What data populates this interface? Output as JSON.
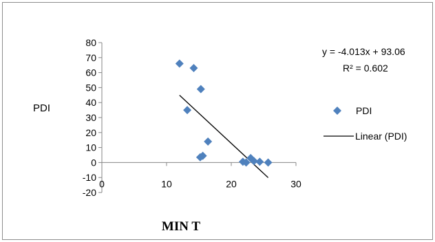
{
  "chart_data": {
    "type": "scatter",
    "title": "",
    "xlabel": "MIN T",
    "ylabel": "PDI",
    "xlim": [
      0,
      30
    ],
    "ylim": [
      -20,
      80
    ],
    "x_ticks": [
      "0",
      "10",
      "20",
      "30"
    ],
    "y_ticks": [
      "-20",
      "-10",
      "0",
      "10",
      "20",
      "30",
      "40",
      "50",
      "60",
      "70",
      "80"
    ],
    "grid": false,
    "legend_position": "right",
    "series": [
      {
        "name": "PDI",
        "marker": "diamond",
        "color": "#4f81bd",
        "points": [
          {
            "x": 12.0,
            "y": 66
          },
          {
            "x": 14.2,
            "y": 63
          },
          {
            "x": 15.3,
            "y": 49
          },
          {
            "x": 13.2,
            "y": 35
          },
          {
            "x": 16.4,
            "y": 14
          },
          {
            "x": 15.2,
            "y": 3.5
          },
          {
            "x": 15.6,
            "y": 4.5
          },
          {
            "x": 21.8,
            "y": 0.5
          },
          {
            "x": 22.3,
            "y": 0
          },
          {
            "x": 23.0,
            "y": 3
          },
          {
            "x": 23.5,
            "y": 1
          },
          {
            "x": 24.4,
            "y": 0.5
          },
          {
            "x": 25.7,
            "y": 0
          }
        ]
      }
    ],
    "trendline": {
      "name": "Linear (PDI)",
      "slope": -4.013,
      "intercept": 93.06,
      "x_range": [
        12.0,
        25.7
      ],
      "equation_text": "y = -4.013x + 93.06",
      "r2_text": "R² = 0.602",
      "color": "#000000"
    }
  }
}
